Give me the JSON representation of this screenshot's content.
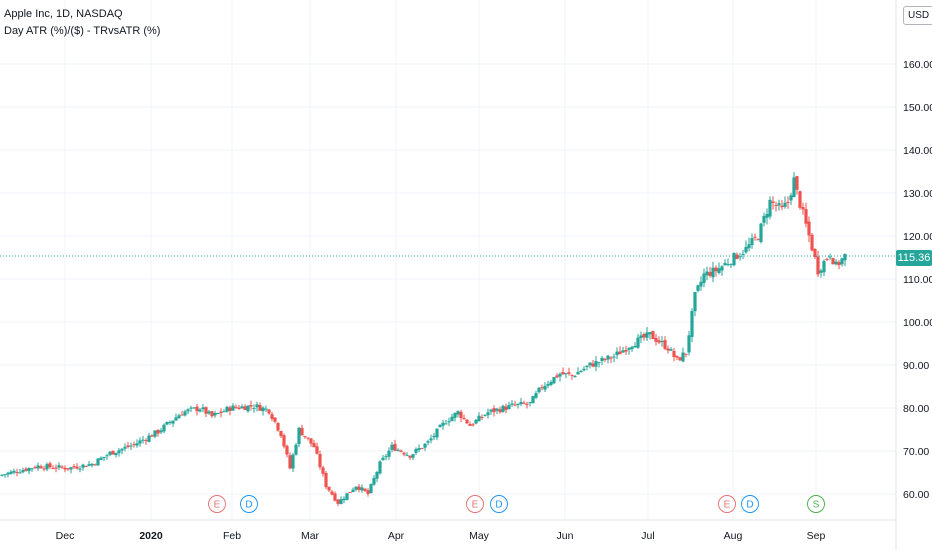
{
  "header": {
    "symbol_line": "Apple Inc, 1D, NASDAQ",
    "indicator_line": "Day ATR (%)/($) - TRvsATR (%)",
    "currency": "USD"
  },
  "price_label": "115.36",
  "colors": {
    "up": "#26a69a",
    "down": "#ef5350",
    "grid": "#f0f3fa",
    "axis_text": "#131722",
    "price_line": "#26a69a",
    "earnings": "#e57373",
    "dividend": "#2196f3",
    "split": "#4caf50"
  },
  "chart_data": {
    "type": "candlestick",
    "title": "Apple Inc, 1D, NASDAQ",
    "ylim": [
      52,
      172
    ],
    "y_ticks": [
      "60.00",
      "70.00",
      "80.00",
      "90.00",
      "100.00",
      "110.00",
      "120.00",
      "130.00",
      "140.00",
      "150.00",
      "160.00"
    ],
    "x_ticks": [
      "Dec",
      "2020",
      "Feb",
      "Mar",
      "Apr",
      "May",
      "Jun",
      "Jul",
      "Aug",
      "Sep"
    ],
    "last_price": 115.36,
    "markers": [
      {
        "type": "earnings",
        "label": "E",
        "month": "Jan"
      },
      {
        "type": "dividend",
        "label": "D",
        "month": "Feb"
      },
      {
        "type": "earnings",
        "label": "E",
        "month": "Apr"
      },
      {
        "type": "dividend",
        "label": "D",
        "month": "May"
      },
      {
        "type": "earnings",
        "label": "E",
        "month": "Jul"
      },
      {
        "type": "dividend",
        "label": "D",
        "month": "Aug"
      },
      {
        "type": "split",
        "label": "S",
        "month": "Aug"
      }
    ],
    "price_path": [
      [
        0,
        64.5
      ],
      [
        12,
        66.5
      ],
      [
        22,
        66.0
      ],
      [
        30,
        67.0
      ],
      [
        36,
        69.5
      ],
      [
        44,
        71.5
      ],
      [
        52,
        74.5
      ],
      [
        60,
        79.0
      ],
      [
        66,
        80.0
      ],
      [
        70,
        78.0
      ],
      [
        76,
        80.0
      ],
      [
        84,
        80.5
      ],
      [
        89,
        79.5
      ],
      [
        93,
        74.0
      ],
      [
        96,
        66.0
      ],
      [
        99,
        75.0
      ],
      [
        104,
        71.0
      ],
      [
        108,
        62.0
      ],
      [
        112,
        58.0
      ],
      [
        115,
        60.0
      ],
      [
        118,
        62.0
      ],
      [
        122,
        60.0
      ],
      [
        126,
        67.0
      ],
      [
        130,
        71.0
      ],
      [
        136,
        69.0
      ],
      [
        142,
        72.0
      ],
      [
        148,
        77.0
      ],
      [
        152,
        79.0
      ],
      [
        156,
        76.0
      ],
      [
        162,
        79.0
      ],
      [
        170,
        80.5
      ],
      [
        176,
        81.0
      ],
      [
        180,
        85.0
      ],
      [
        186,
        88.0
      ],
      [
        190,
        87.5
      ],
      [
        196,
        90.0
      ],
      [
        204,
        92.0
      ],
      [
        210,
        95.0
      ],
      [
        216,
        97.0
      ],
      [
        222,
        94.0
      ],
      [
        225,
        91.0
      ],
      [
        228,
        93.0
      ],
      [
        231,
        106.0
      ],
      [
        234,
        111.0
      ],
      [
        238,
        112.0
      ],
      [
        242,
        114.0
      ],
      [
        248,
        117.0
      ],
      [
        252,
        120.0
      ],
      [
        256,
        128.0
      ],
      [
        258,
        127.0
      ],
      [
        260,
        126.0
      ],
      [
        262,
        128.0
      ],
      [
        264,
        133.0
      ],
      [
        265,
        130.0
      ],
      [
        267,
        125.0
      ],
      [
        269,
        120.0
      ],
      [
        272,
        112.0
      ],
      [
        276,
        116.0
      ],
      [
        278,
        113.0
      ],
      [
        281,
        115.36
      ]
    ]
  }
}
